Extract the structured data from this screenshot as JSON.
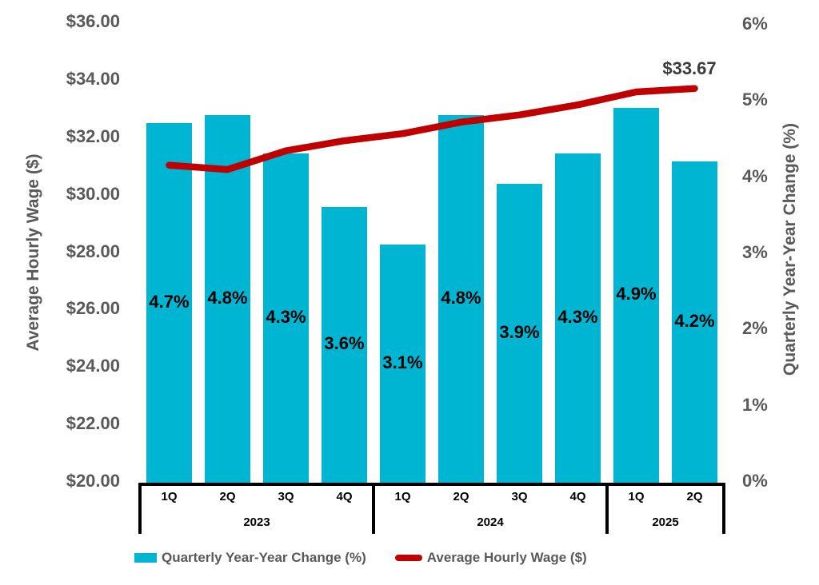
{
  "chart_data": {
    "type": "combo-bar-line",
    "quarters": [
      "1Q",
      "2Q",
      "3Q",
      "4Q",
      "1Q",
      "2Q",
      "3Q",
      "4Q",
      "1Q",
      "2Q"
    ],
    "year_groups": [
      {
        "label": "2023",
        "span": 4
      },
      {
        "label": "2024",
        "span": 4
      },
      {
        "label": "2025",
        "span": 2
      }
    ],
    "series": [
      {
        "name": "Quarterly Year-Year Change (%)",
        "type": "bar",
        "axis": "right",
        "color": "#00B5D2",
        "values": [
          4.7,
          4.8,
          4.3,
          3.6,
          3.1,
          4.8,
          3.9,
          4.3,
          4.9,
          4.2
        ],
        "labels": [
          "4.7%",
          "4.8%",
          "4.3%",
          "3.6%",
          "3.1%",
          "4.8%",
          "3.9%",
          "4.3%",
          "4.9%",
          "4.2%"
        ]
      },
      {
        "name": "Average Hourly Wage ($)",
        "type": "line",
        "axis": "left",
        "color": "#C00000",
        "values": [
          31.0,
          30.85,
          31.5,
          31.85,
          32.1,
          32.5,
          32.75,
          33.1,
          33.55,
          33.67
        ],
        "end_label": "$33.67"
      }
    ],
    "left_axis": {
      "title": "Average Hourly Wage ($)",
      "min": 20,
      "max": 36,
      "step": 2,
      "tick_values": [
        36,
        34,
        32,
        30,
        28,
        26,
        24,
        22,
        20
      ],
      "tick_labels": [
        "$36.00",
        "$34.00",
        "$32.00",
        "$30.00",
        "$28.00",
        "$26.00",
        "$24.00",
        "$22.00",
        "$20.00"
      ]
    },
    "right_axis": {
      "title": "Quarterly Year-Year Change (%)",
      "min": 0,
      "max": 6,
      "step": 1,
      "tick_values": [
        6,
        5,
        4,
        3,
        2,
        1,
        0
      ],
      "tick_labels": [
        "6%",
        "5%",
        "4%",
        "3%",
        "2%",
        "1%",
        "0%"
      ]
    },
    "grid": "off",
    "legend_position": "bottom"
  }
}
